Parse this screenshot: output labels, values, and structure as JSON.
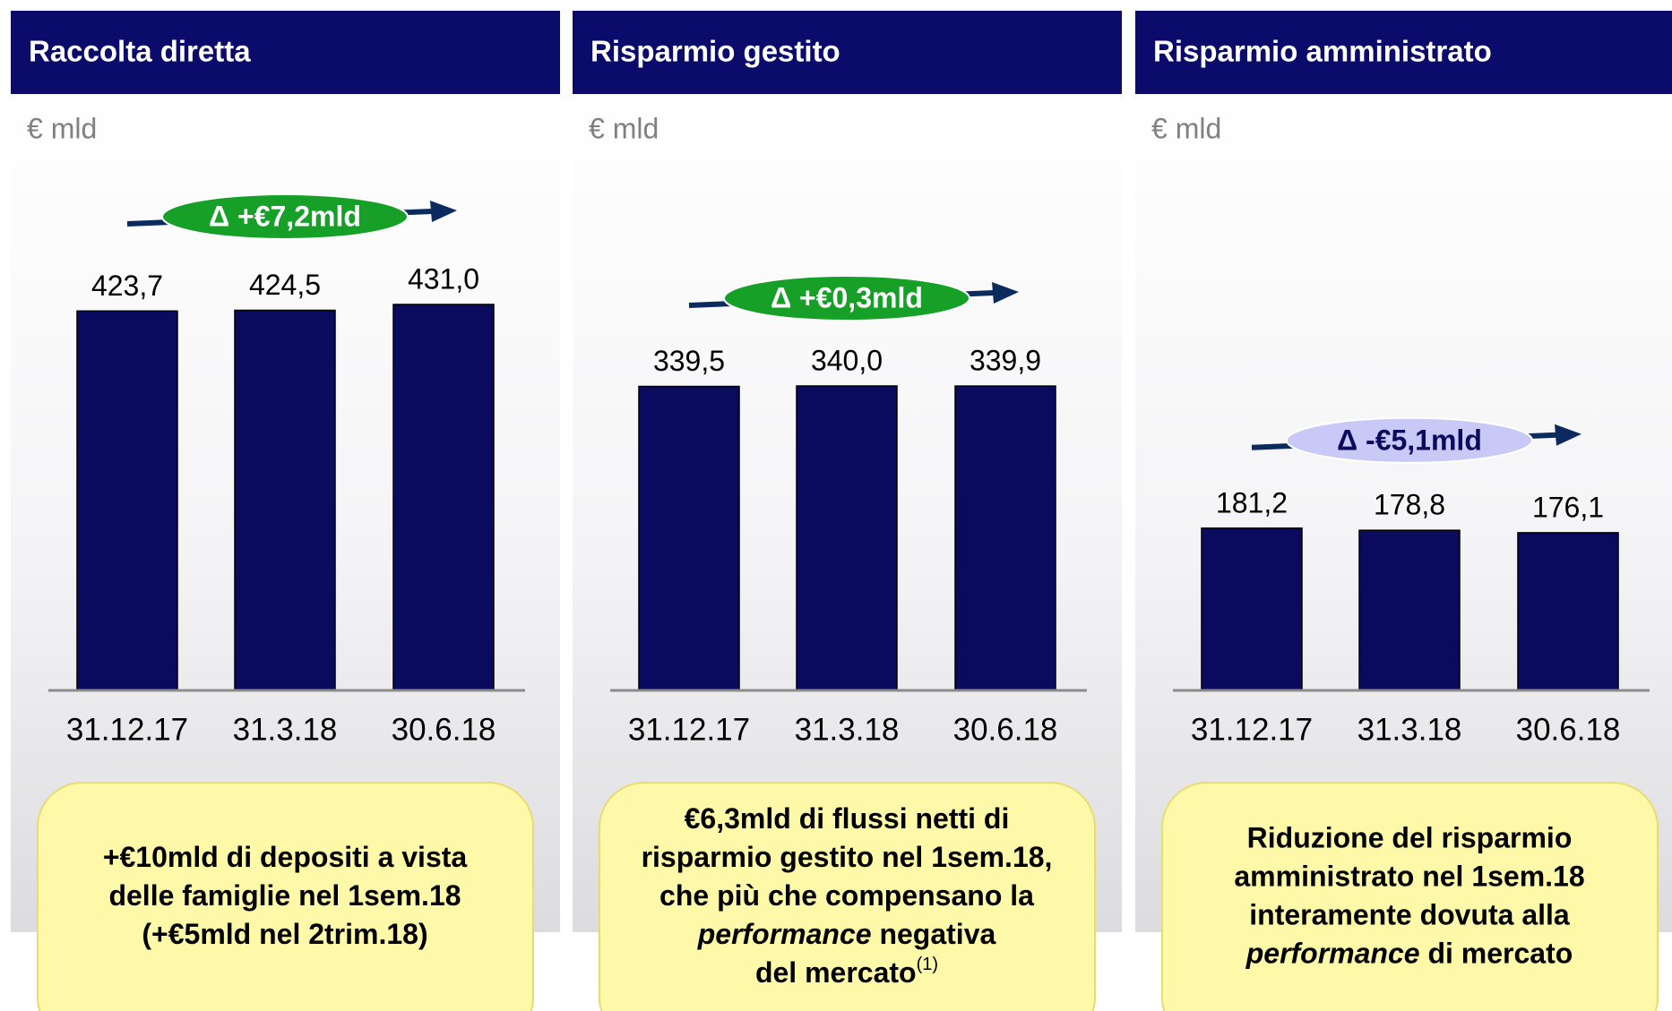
{
  "chart_data": [
    {
      "type": "bar",
      "title": "Raccolta diretta",
      "unit": "€ mld",
      "delta": {
        "label": "Δ +€7,2mld",
        "color": "#17a028",
        "text_color": "#ffffff"
      },
      "categories": [
        "31.12.17",
        "31.3.18",
        "30.6.18"
      ],
      "values": [
        423.7,
        424.5,
        431.0
      ],
      "value_labels": [
        "423,7",
        "424,5",
        "431,0"
      ],
      "color": "#0a0a5e",
      "ylim": [
        0,
        500
      ],
      "note": [
        [
          {
            "text": "+€10mld di depositi a vista"
          }
        ],
        [
          {
            "text": "delle famiglie nel 1sem.18"
          }
        ],
        [
          {
            "text": "(+€5mld nel 2trim.18)"
          }
        ]
      ]
    },
    {
      "type": "bar",
      "title": "Risparmio gestito",
      "unit": "€ mld",
      "delta": {
        "label": "Δ +€0,3mld",
        "color": "#17a028",
        "text_color": "#ffffff"
      },
      "categories": [
        "31.12.17",
        "31.3.18",
        "30.6.18"
      ],
      "values": [
        339.5,
        340.0,
        339.9
      ],
      "value_labels": [
        "339,5",
        "340,0",
        "339,9"
      ],
      "color": "#0a0a5e",
      "ylim": [
        0,
        500
      ],
      "note": [
        [
          {
            "text": "€6,3mld di flussi netti di"
          }
        ],
        [
          {
            "text": "risparmio gestito nel 1sem.18,"
          }
        ],
        [
          {
            "text": "che più che compensano la"
          }
        ],
        [
          {
            "text": "performance",
            "italic": true
          },
          {
            "text": " negativa"
          }
        ],
        [
          {
            "text": "del mercato"
          },
          {
            "text": "(1)",
            "sup": true
          }
        ]
      ]
    },
    {
      "type": "bar",
      "title": "Risparmio amministrato",
      "unit": "€ mld",
      "delta": {
        "label": "Δ -€5,1mld",
        "color": "#c9c9f7",
        "text_color": "#0a0a5e"
      },
      "categories": [
        "31.12.17",
        "31.3.18",
        "30.6.18"
      ],
      "values": [
        181.2,
        178.8,
        176.1
      ],
      "value_labels": [
        "181,2",
        "178,8",
        "176,1"
      ],
      "color": "#0a0a5e",
      "ylim": [
        0,
        500
      ],
      "note": [
        [
          {
            "text": "Riduzione del risparmio"
          }
        ],
        [
          {
            "text": "amministrato nel 1sem.18"
          }
        ],
        [
          {
            "text": "interamente dovuta alla"
          }
        ],
        [
          {
            "text": "performance",
            "italic": true
          },
          {
            "text": " di mercato"
          }
        ]
      ]
    }
  ]
}
